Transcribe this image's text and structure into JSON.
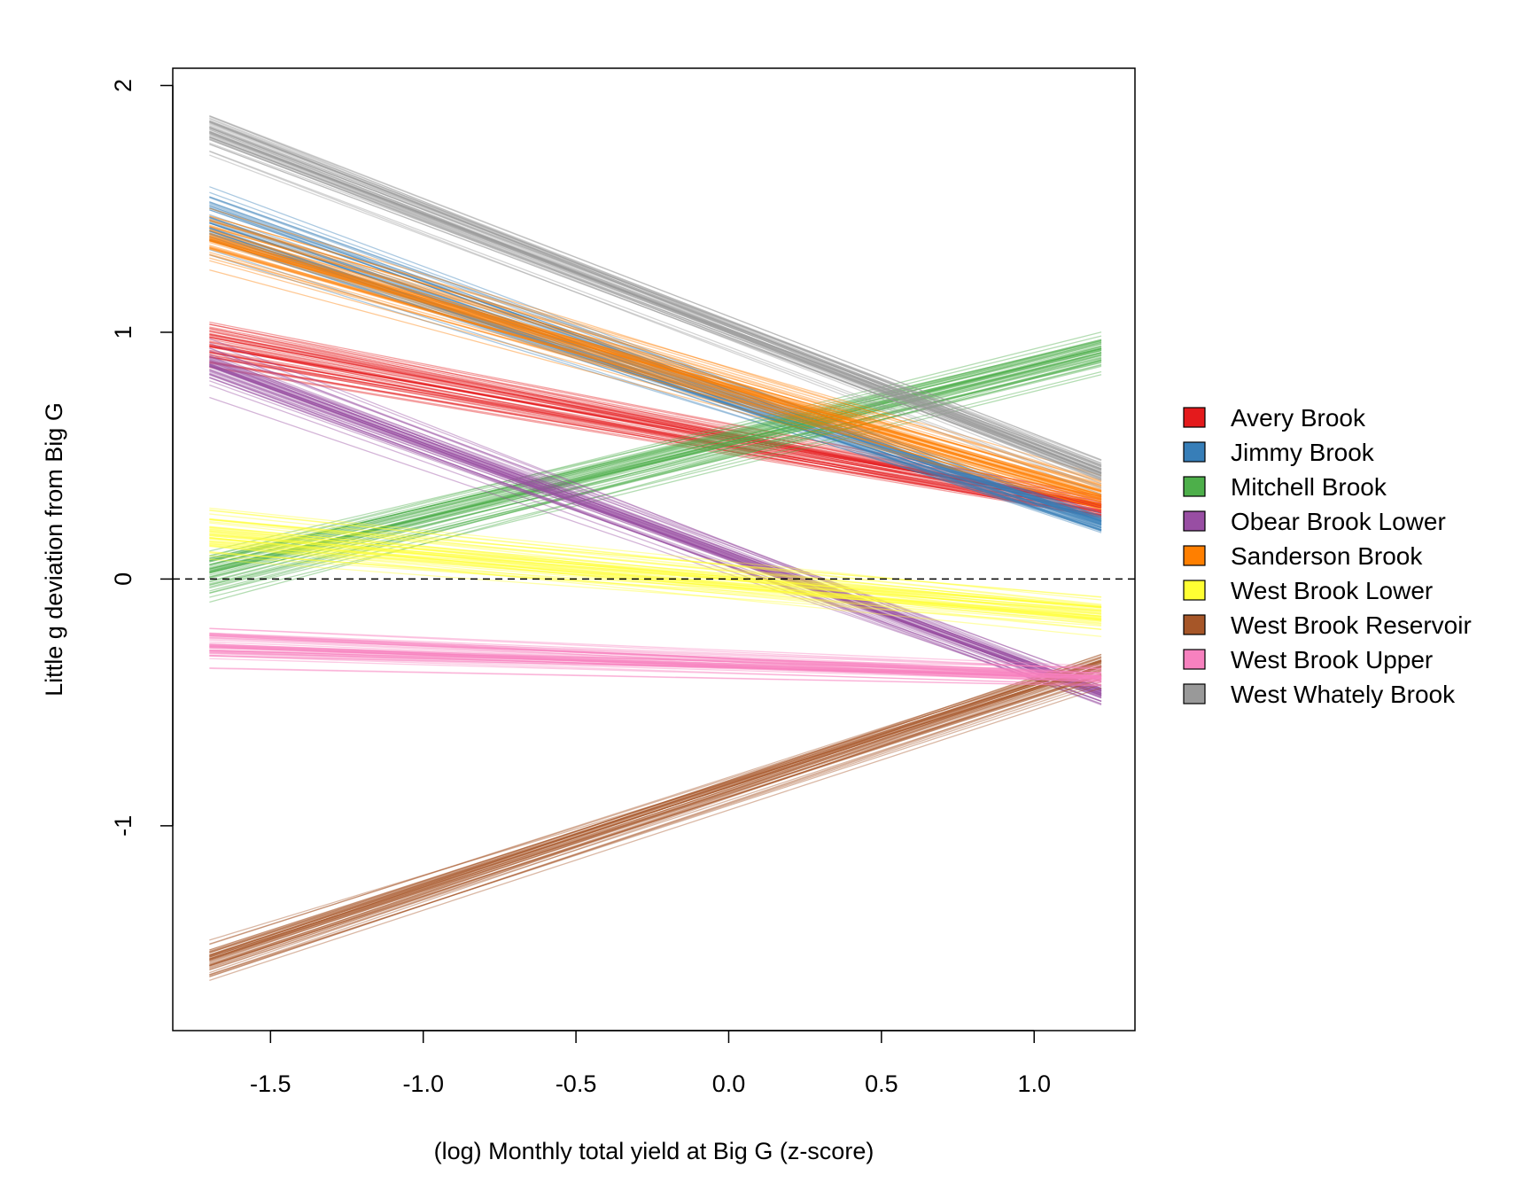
{
  "chart_data": {
    "type": "line",
    "title": "",
    "xlabel": "(log) Monthly total yield at Big G (z-score)",
    "ylabel": "Little g deviation from Big G",
    "xlim": [
      -1.82,
      1.33
    ],
    "ylim": [
      -1.83,
      2.07
    ],
    "xticks": [
      -1.5,
      -1.0,
      -0.5,
      0.0,
      0.5,
      1.0
    ],
    "xtick_labels": [
      "-1.5",
      "-1.0",
      "-0.5",
      "0.0",
      "0.5",
      "1.0"
    ],
    "yticks": [
      -1,
      0,
      1,
      2
    ],
    "ytick_labels": [
      "-1",
      "0",
      "1",
      "2"
    ],
    "x_range": [
      -1.7,
      1.22
    ],
    "reference_line": {
      "y": 0,
      "style": "dashed"
    },
    "grid": false,
    "legend_position": "right",
    "draws_per_series": 50,
    "series": [
      {
        "name": "Avery Brook",
        "color": "#E41A1C",
        "start": 0.96,
        "end": 0.29,
        "start_spread": 0.09,
        "end_spread": 0.05
      },
      {
        "name": "Jimmy Brook",
        "color": "#377EB8",
        "start": 1.45,
        "end": 0.22,
        "start_spread": 0.12,
        "end_spread": 0.05
      },
      {
        "name": "Mitchell Brook",
        "color": "#4DAF4A",
        "start": 0.02,
        "end": 0.92,
        "start_spread": 0.09,
        "end_spread": 0.09
      },
      {
        "name": "Obear Brook Lower",
        "color": "#984EA3",
        "start": 0.87,
        "end": -0.46,
        "start_spread": 0.07,
        "end_spread": 0.05
      },
      {
        "name": "Sanderson Brook",
        "color": "#FF7F00",
        "start": 1.38,
        "end": 0.34,
        "start_spread": 0.08,
        "end_spread": 0.07
      },
      {
        "name": "West Brook Lower",
        "color": "#FFFF33",
        "start": 0.19,
        "end": -0.14,
        "start_spread": 0.1,
        "end_spread": 0.07
      },
      {
        "name": "West Brook Reservoir",
        "color": "#A65628",
        "start": -1.55,
        "end": -0.36,
        "start_spread": 0.07,
        "end_spread": 0.07
      },
      {
        "name": "West Brook Upper",
        "color": "#F781BF",
        "start": -0.27,
        "end": -0.4,
        "start_spread": 0.08,
        "end_spread": 0.05
      },
      {
        "name": "West Whately Brook",
        "color": "#999999",
        "start": 1.82,
        "end": 0.43,
        "start_spread": 0.07,
        "end_spread": 0.06
      }
    ]
  }
}
